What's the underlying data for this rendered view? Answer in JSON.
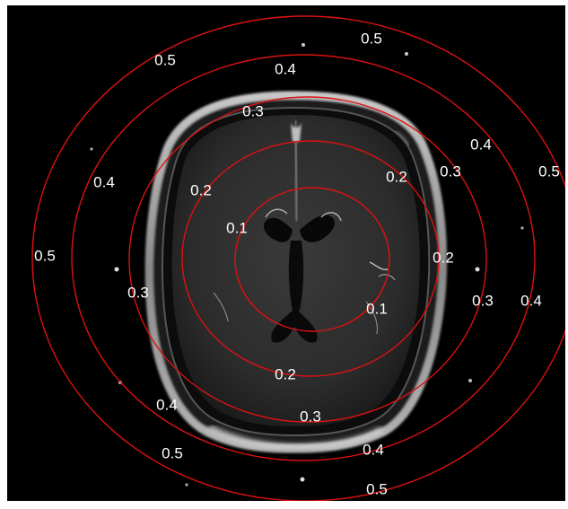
{
  "figure": {
    "contour_color": "#dd1111",
    "background_color": "#000000",
    "contours": [
      {
        "level": "0.1",
        "labels": [
          "0.1",
          "0.1"
        ]
      },
      {
        "level": "0.2",
        "labels": [
          "0.2",
          "0.2",
          "0.2",
          "0.2"
        ]
      },
      {
        "level": "0.3",
        "labels": [
          "0.3",
          "0.3",
          "0.3",
          "0.3",
          "0.3"
        ]
      },
      {
        "level": "0.4",
        "labels": [
          "0.4",
          "0.4",
          "0.4",
          "0.4",
          "0.4",
          "0.4"
        ]
      },
      {
        "level": "0.5",
        "labels": [
          "0.5",
          "0.5",
          "0.5",
          "0.5",
          "0.5",
          "0.5"
        ]
      }
    ]
  }
}
